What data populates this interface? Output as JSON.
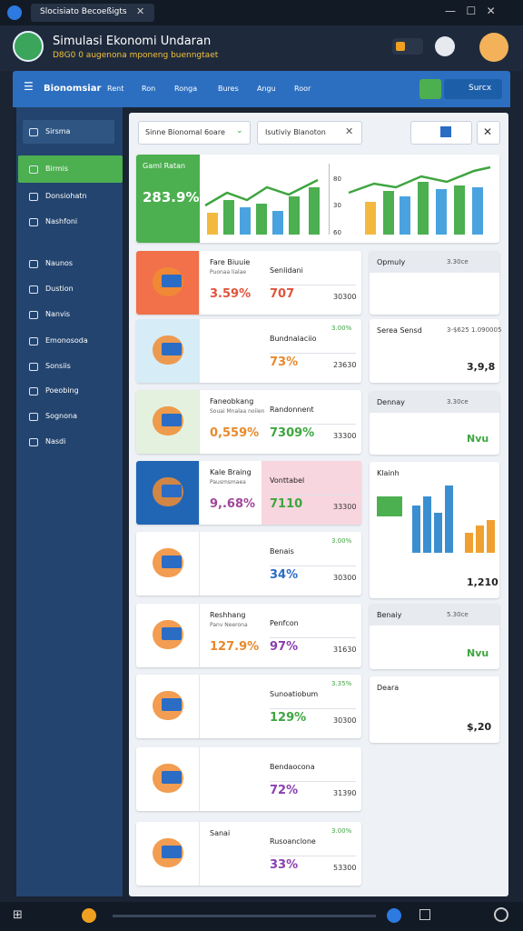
{
  "window": {
    "title": "Slocisiato Becoeßigts"
  },
  "header": {
    "title": "Simulasi Ekonomi Undaran",
    "subtitle": "D8G0 0 augenona mponeng buenngtaet"
  },
  "nav": {
    "brand": "Bionomsiar",
    "items": [
      "Rent",
      "Ron",
      "Ronga",
      "Bures",
      "Angu",
      "Roor"
    ],
    "button": "Surcx"
  },
  "sidebar": {
    "items": [
      "Sirsma",
      "Birmis",
      "Donsiohatn",
      "Nashfoni",
      "Naunos",
      "Dustion",
      "Nanvis",
      "Emonosoda",
      "Sonsiis",
      "Poeobing",
      "Sognona",
      "Nasdi"
    ]
  },
  "toolbar": {
    "select": "Sinne Bionomal 6oare",
    "search": "Isutiviy Blanoton"
  },
  "hero": {
    "label": "Gaml Ratan",
    "value": "283.9%",
    "axis": [
      "80",
      "30",
      "60"
    ]
  },
  "cards": [
    {
      "title": "Fare Biuuie",
      "note": "Puonaa lialae",
      "value": "3.59%",
      "value_color": "#e2533c",
      "title2": "Senlidani",
      "value2": "707",
      "value2_color": "#e2533c",
      "small": "30300",
      "icon_bg": "#f2704a"
    },
    {
      "title2": "Bundnalaciio",
      "value2": "73%",
      "value2_color": "#e8892c",
      "small": "23630",
      "tag": "3.00%",
      "icon_bg": "#d6ecf7"
    },
    {
      "title": "Faneobkang",
      "note": "Souai Mnalaa noiien",
      "value": "0,559%",
      "value_color": "#e8892c",
      "title2": "Randonnent",
      "value2": "7309%",
      "value2_color": "#3ea540",
      "small": "33300",
      "icon_bg": "#e4f1df"
    },
    {
      "title": "Kale Braing",
      "note": "Pausmsmaea",
      "value": "9,.68%",
      "value_color": "#a0459a",
      "title2": "Vonttabel",
      "value2": "7110",
      "value2_color": "#3ea540",
      "small": "33300",
      "icon_bg": "#2166b5"
    },
    {
      "title2": "Benais",
      "value2": "34%",
      "value2_color": "#2b6cc4",
      "small": "30300",
      "tag": "3.00%",
      "icon_bg": "#ffffff"
    },
    {
      "title": "Reshhang",
      "note": "Panv Neerona",
      "value": "127.9%",
      "value_color": "#e8892c",
      "title2": "Penfcon",
      "value2": "97%",
      "value2_color": "#8a3fb0",
      "small": "31630",
      "icon_bg": "#ffffff"
    },
    {
      "title2": "Sunoatiobum",
      "value2": "129%",
      "value2_color": "#3ea540",
      "small": "30300",
      "tag": "3.35%",
      "icon_bg": "#ffffff"
    },
    {
      "title2": "Bendaocona",
      "value2": "72%",
      "value2_color": "#8a3fb0",
      "small": "31390",
      "icon_bg": "#ffffff"
    },
    {
      "title": "Sanai",
      "title2": "Rusoanclone",
      "value2": "33%",
      "value2_color": "#8a3fb0",
      "small": "53300",
      "tag": "3.00%",
      "icon_bg": "#ffffff"
    }
  ],
  "side_cards": [
    {
      "title": "Opmuly",
      "tag": "3.30ce"
    },
    {
      "title": "Serea Sensd",
      "tag": "3-$625 1.090005",
      "value": "3,9,8"
    },
    {
      "title": "Dennay",
      "tag": "3.30ce",
      "value": "Nvu"
    },
    {
      "title": "Klainh",
      "value": "1,210"
    },
    {
      "title": "Benaiy",
      "tag": "5.30ce",
      "value": "Nvu"
    },
    {
      "title": "Deara",
      "value": "$,20"
    }
  ]
}
